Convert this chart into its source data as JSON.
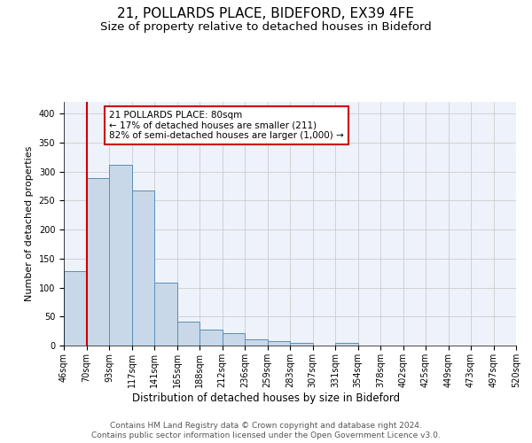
{
  "title_line1": "21, POLLARDS PLACE, BIDEFORD, EX39 4FE",
  "title_line2": "Size of property relative to detached houses in Bideford",
  "xlabel": "Distribution of detached houses by size in Bideford",
  "ylabel": "Number of detached properties",
  "categories": [
    "46sqm",
    "70sqm",
    "93sqm",
    "117sqm",
    "141sqm",
    "165sqm",
    "188sqm",
    "212sqm",
    "236sqm",
    "259sqm",
    "283sqm",
    "307sqm",
    "331sqm",
    "354sqm",
    "378sqm",
    "402sqm",
    "425sqm",
    "449sqm",
    "473sqm",
    "497sqm",
    "520sqm"
  ],
  "bar_heights": [
    128,
    288,
    312,
    267,
    108,
    42,
    27,
    22,
    11,
    7,
    5,
    0,
    4,
    0,
    0,
    0,
    0,
    0,
    0,
    0
  ],
  "bar_color": "#c8d8e8",
  "bar_edge_color": "#5b8db8",
  "highlight_color": "#cc0000",
  "highlight_bin": 1,
  "annotation_text": "21 POLLARDS PLACE: 80sqm\n← 17% of detached houses are smaller (211)\n82% of semi-detached houses are larger (1,000) →",
  "annotation_box_color": "#ffffff",
  "annotation_box_edge": "#cc0000",
  "ylim": [
    0,
    420
  ],
  "yticks": [
    0,
    50,
    100,
    150,
    200,
    250,
    300,
    350,
    400
  ],
  "grid_color": "#cccccc",
  "background_color": "#eef2fa",
  "footer_line1": "Contains HM Land Registry data © Crown copyright and database right 2024.",
  "footer_line2": "Contains public sector information licensed under the Open Government Licence v3.0.",
  "title_fontsize": 11,
  "subtitle_fontsize": 9.5,
  "ylabel_fontsize": 8,
  "xlabel_fontsize": 8.5,
  "tick_fontsize": 7,
  "annotation_fontsize": 7.5,
  "footer_fontsize": 6.5
}
